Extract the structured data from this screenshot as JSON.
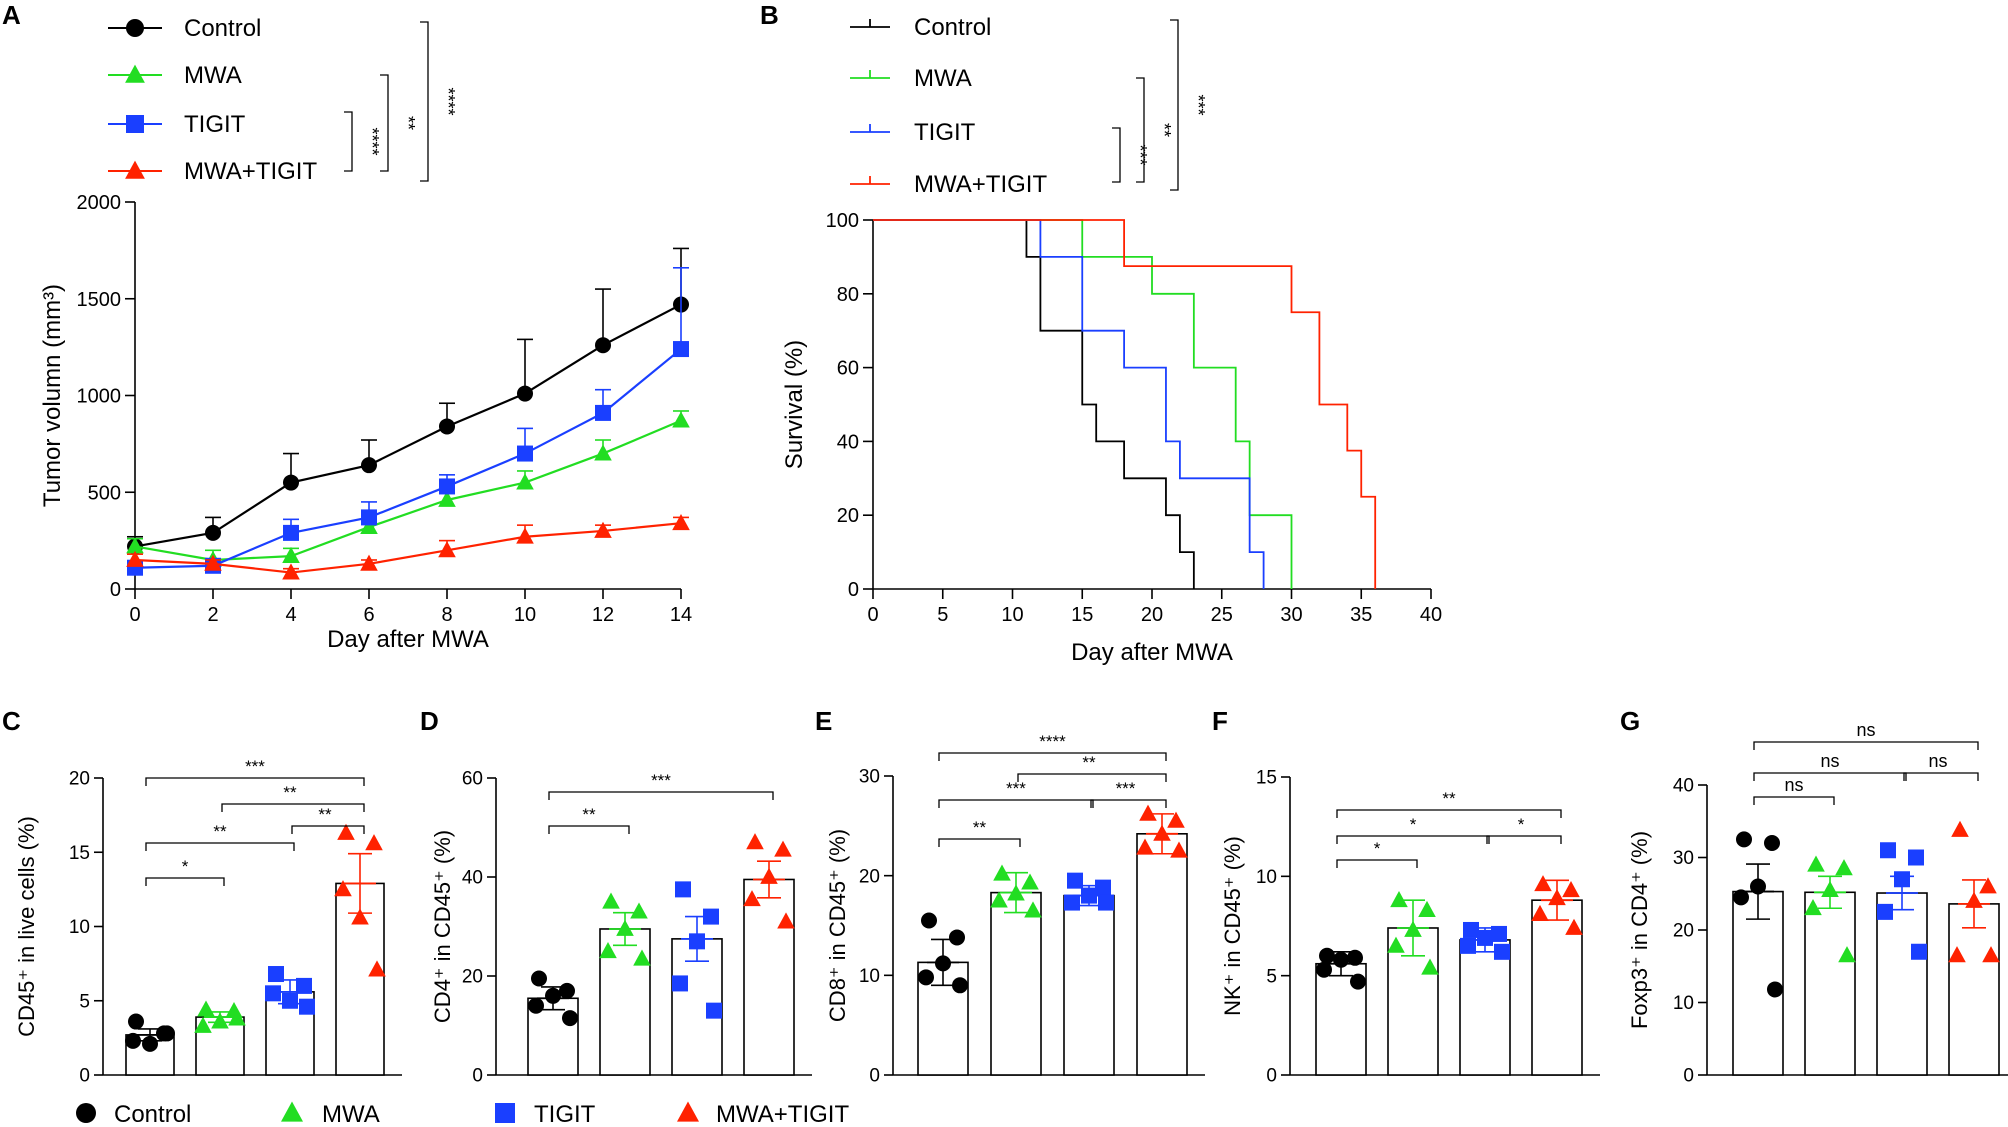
{
  "panel_letters": [
    "A",
    "B",
    "C",
    "D",
    "E",
    "F",
    "G"
  ],
  "colors": {
    "Control": "#000000",
    "MWA": "#22dd22",
    "TIGIT": "#1a3fff",
    "MWA+TIGIT": "#ff2200"
  },
  "legend_bottom": {
    "labels": [
      "Control",
      "MWA",
      "TIGIT",
      "MWA+TIGIT"
    ]
  },
  "chart_data": [
    {
      "id": "A",
      "type": "line",
      "title": "",
      "xlabel": "Day after MWA",
      "ylabel": "Tumor volumn (mm³)",
      "x": [
        0,
        2,
        4,
        6,
        8,
        10,
        12,
        14
      ],
      "xlim": [
        0,
        14
      ],
      "ylim": [
        0,
        2000
      ],
      "xticks": [
        "0",
        "2",
        "4",
        "6",
        "8",
        "10",
        "12",
        "14"
      ],
      "yticks": [
        "0",
        "500",
        "1000",
        "1500",
        "2000"
      ],
      "legend": [
        "Control",
        "MWA",
        "TIGIT",
        "MWA+TIGIT"
      ],
      "series": [
        {
          "name": "Control",
          "marker": "circle",
          "values": [
            220,
            290,
            550,
            640,
            840,
            1010,
            1260,
            1470
          ],
          "err": [
            50,
            80,
            150,
            130,
            120,
            280,
            290,
            290
          ]
        },
        {
          "name": "MWA",
          "marker": "triangle",
          "values": [
            220,
            150,
            170,
            320,
            460,
            550,
            700,
            870
          ],
          "err": [
            40,
            50,
            40,
            50,
            40,
            60,
            70,
            50
          ]
        },
        {
          "name": "TIGIT",
          "marker": "square",
          "values": [
            110,
            120,
            290,
            370,
            530,
            700,
            910,
            1240
          ],
          "err": [
            30,
            30,
            70,
            80,
            60,
            130,
            120,
            420
          ]
        },
        {
          "name": "MWA+TIGIT",
          "marker": "triangle",
          "values": [
            150,
            130,
            85,
            130,
            200,
            270,
            300,
            340
          ],
          "err": [
            30,
            20,
            20,
            20,
            50,
            60,
            30,
            30
          ]
        }
      ],
      "significance": [
        {
          "label": "****",
          "from": "TIGIT",
          "to": "MWA+TIGIT"
        },
        {
          "label": "**",
          "from": "MWA",
          "to": "MWA+TIGIT"
        },
        {
          "label": "****",
          "from": "Control",
          "to": "MWA+TIGIT"
        }
      ]
    },
    {
      "id": "B",
      "type": "line",
      "title": "",
      "xlabel": "Day after MWA",
      "ylabel": "Survival (%)",
      "xlim": [
        0,
        40
      ],
      "ylim": [
        0,
        100
      ],
      "xticks": [
        "0",
        "5",
        "10",
        "15",
        "20",
        "25",
        "30",
        "35",
        "40"
      ],
      "yticks": [
        "0",
        "20",
        "40",
        "60",
        "80",
        "100"
      ],
      "legend": [
        "Control",
        "MWA",
        "TIGIT",
        "MWA+TIGIT"
      ],
      "series": [
        {
          "name": "Control",
          "steps": [
            [
              0,
              100
            ],
            [
              11,
              90
            ],
            [
              12,
              70
            ],
            [
              15,
              50
            ],
            [
              16,
              40
            ],
            [
              18,
              30
            ],
            [
              21,
              20
            ],
            [
              22,
              10
            ],
            [
              23,
              0
            ]
          ]
        },
        {
          "name": "MWA",
          "steps": [
            [
              0,
              100
            ],
            [
              15,
              90
            ],
            [
              20,
              80
            ],
            [
              23,
              60
            ],
            [
              26,
              40
            ],
            [
              27,
              20
            ],
            [
              30,
              0
            ]
          ]
        },
        {
          "name": "TIGIT",
          "steps": [
            [
              0,
              100
            ],
            [
              12,
              90
            ],
            [
              15,
              70
            ],
            [
              18,
              60
            ],
            [
              21,
              40
            ],
            [
              22,
              30
            ],
            [
              27,
              10
            ],
            [
              28,
              0
            ]
          ]
        },
        {
          "name": "MWA+TIGIT",
          "steps": [
            [
              0,
              100
            ],
            [
              18,
              87.5
            ],
            [
              30,
              75
            ],
            [
              32,
              50
            ],
            [
              34,
              37.5
            ],
            [
              35,
              25
            ],
            [
              36,
              0
            ]
          ]
        }
      ],
      "significance": [
        {
          "label": "***",
          "from": "TIGIT",
          "to": "MWA+TIGIT"
        },
        {
          "label": "**",
          "from": "MWA",
          "to": "MWA+TIGIT"
        },
        {
          "label": "***",
          "from": "Control",
          "to": "MWA+TIGIT"
        }
      ]
    },
    {
      "id": "C",
      "type": "bar",
      "ylabel": "CD45⁺ in live cells (%)",
      "categories": [
        "Control",
        "MWA",
        "TIGIT",
        "MWA+TIGIT"
      ],
      "ylim": [
        0,
        20
      ],
      "yticks": [
        "0",
        "5",
        "10",
        "15",
        "20"
      ],
      "values": [
        2.7,
        3.9,
        5.6,
        12.9
      ],
      "err": [
        0.4,
        0.35,
        0.8,
        2.0
      ],
      "points": [
        [
          3.6,
          2.8,
          2.1,
          2.3,
          2.8
        ],
        [
          4.4,
          4.3,
          3.6,
          3.3,
          3.8
        ],
        [
          6.8,
          6.0,
          5.0,
          5.5,
          4.6
        ],
        [
          16.3,
          15.6,
          10.6,
          12.5,
          7.1
        ]
      ],
      "brackets": [
        {
          "a": 0,
          "b": 1,
          "label": "*"
        },
        {
          "a": 0,
          "b": 2,
          "label": "**"
        },
        {
          "a": 2,
          "b": 3,
          "label": "**"
        },
        {
          "a": 1,
          "b": 3,
          "label": "**"
        },
        {
          "a": 0,
          "b": 3,
          "label": "***"
        }
      ]
    },
    {
      "id": "D",
      "type": "bar",
      "ylabel": "CD4⁺ in CD45⁺ (%)",
      "categories": [
        "Control",
        "MWA",
        "TIGIT",
        "MWA+TIGIT"
      ],
      "ylim": [
        0,
        60
      ],
      "yticks": [
        "0",
        "20",
        "40",
        "60"
      ],
      "values": [
        15.5,
        29.5,
        27.5,
        39.5
      ],
      "err": [
        2.3,
        3.3,
        4.5,
        3.7
      ],
      "points": [
        [
          19.5,
          17,
          16,
          14,
          11.5
        ],
        [
          35,
          33,
          29.5,
          25,
          23.5
        ],
        [
          37.5,
          32,
          27,
          18.5,
          13
        ],
        [
          47,
          45.5,
          40,
          35.5,
          31
        ]
      ],
      "brackets": [
        {
          "a": 0,
          "b": 1,
          "label": "**"
        },
        {
          "a": 0,
          "b": 3,
          "label": "***"
        }
      ]
    },
    {
      "id": "E",
      "type": "bar",
      "ylabel": "CD8⁺ in CD45⁺ (%)",
      "categories": [
        "Control",
        "MWA",
        "TIGIT",
        "MWA+TIGIT"
      ],
      "ylim": [
        0,
        30
      ],
      "yticks": [
        "0",
        "10",
        "20",
        "30"
      ],
      "values": [
        11.3,
        18.3,
        18.0,
        24.2
      ],
      "err": [
        2.3,
        2.0,
        1.0,
        2.0
      ],
      "points": [
        [
          15.5,
          13.8,
          11.2,
          9.8,
          9.0
        ],
        [
          20.2,
          19.3,
          18.2,
          17.5,
          16.5
        ],
        [
          19.5,
          18.8,
          18.0,
          17.3,
          17.3
        ],
        [
          26.2,
          25.5,
          24.2,
          22.8,
          22.5
        ]
      ],
      "brackets": [
        {
          "a": 0,
          "b": 1,
          "label": "**"
        },
        {
          "a": 0,
          "b": 2,
          "label": "***"
        },
        {
          "a": 2,
          "b": 3,
          "label": "***"
        },
        {
          "a": 1,
          "b": 3,
          "label": "**"
        },
        {
          "a": 0,
          "b": 3,
          "label": "****"
        }
      ]
    },
    {
      "id": "F",
      "type": "bar",
      "ylabel": "NK⁺ in CD45⁺ (%)",
      "categories": [
        "Control",
        "MWA",
        "TIGIT",
        "MWA+TIGIT"
      ],
      "ylim": [
        0,
        15
      ],
      "yticks": [
        "0",
        "5",
        "10",
        "15"
      ],
      "values": [
        5.6,
        7.4,
        6.8,
        8.8
      ],
      "err": [
        0.6,
        1.4,
        0.6,
        1.0
      ],
      "points": [
        [
          6.0,
          5.9,
          5.8,
          5.3,
          4.7
        ],
        [
          8.8,
          8.3,
          7.3,
          6.5,
          5.4
        ],
        [
          7.3,
          7.1,
          6.9,
          6.5,
          6.2
        ],
        [
          9.6,
          9.3,
          8.9,
          8.1,
          7.4
        ]
      ],
      "brackets": [
        {
          "a": 0,
          "b": 1,
          "label": "*"
        },
        {
          "a": 0,
          "b": 2,
          "label": "*"
        },
        {
          "a": 2,
          "b": 3,
          "label": "*"
        },
        {
          "a": 0,
          "b": 3,
          "label": "**"
        }
      ]
    },
    {
      "id": "G",
      "type": "bar",
      "ylabel": "Foxp3⁺ in CD4⁺ (%)",
      "categories": [
        "Control",
        "MWA",
        "TIGIT",
        "MWA+TIGIT"
      ],
      "ylim": [
        0,
        40
      ],
      "yticks": [
        "0",
        "10",
        "20",
        "30",
        "40"
      ],
      "values": [
        25.3,
        25.2,
        25.1,
        23.6
      ],
      "err": [
        3.8,
        2.2,
        2.3,
        3.3
      ],
      "points": [
        [
          32.5,
          32,
          26,
          24.5,
          11.8
        ],
        [
          29,
          28.5,
          25.5,
          23,
          16.5
        ],
        [
          31,
          30,
          27,
          22.5,
          17
        ],
        [
          33.8,
          26,
          24,
          16.5,
          16.5
        ]
      ],
      "brackets": [
        {
          "a": 0,
          "b": 1,
          "label": "ns"
        },
        {
          "a": 0,
          "b": 2,
          "label": "ns"
        },
        {
          "a": 2,
          "b": 3,
          "label": "ns"
        },
        {
          "a": 0,
          "b": 3,
          "label": "ns"
        }
      ]
    }
  ]
}
